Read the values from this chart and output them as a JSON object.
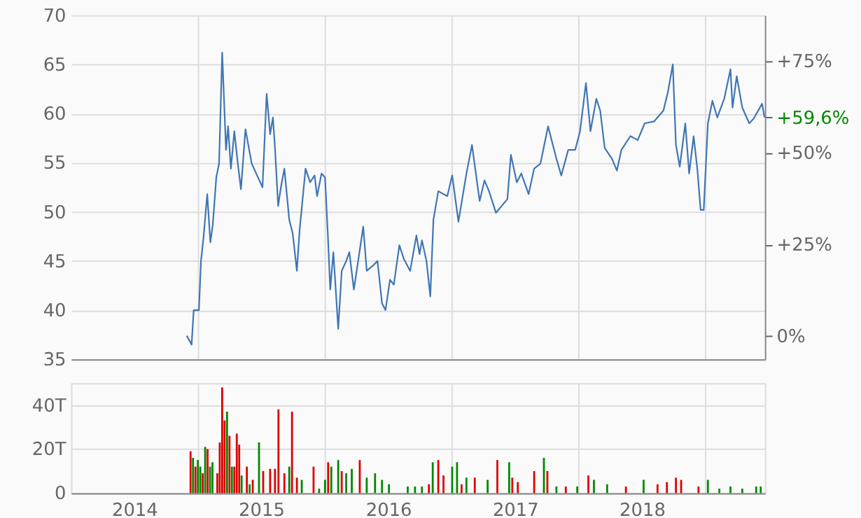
{
  "chart_data": [
    {
      "type": "line",
      "x": [
        "2014-11-30",
        "2014-12-14",
        "2014-12-20",
        "2015-01-04",
        "2015-01-10",
        "2015-01-17",
        "2015-01-28",
        "2015-02-06",
        "2015-02-13",
        "2015-02-23",
        "2015-03-03",
        "2015-03-12",
        "2015-03-23",
        "2015-03-29",
        "2015-04-06",
        "2015-04-16",
        "2015-04-26",
        "2015-05-05",
        "2015-05-18",
        "2015-06-05",
        "2015-06-18",
        "2015-07-06",
        "2015-07-18",
        "2015-07-28",
        "2015-08-05",
        "2015-08-11",
        "2015-08-20",
        "2015-08-28",
        "2015-09-07",
        "2015-09-21",
        "2015-10-01",
        "2015-10-13",
        "2015-10-21",
        "2015-11-07",
        "2015-11-20",
        "2015-12-03",
        "2015-12-10",
        "2015-12-23",
        "2016-01-02",
        "2016-01-10",
        "2016-01-17",
        "2016-01-26",
        "2016-02-09",
        "2016-02-19",
        "2016-03-03",
        "2016-03-12",
        "2016-03-25",
        "2016-04-08",
        "2016-04-21",
        "2016-05-01",
        "2016-05-18",
        "2016-06-01",
        "2016-06-14",
        "2016-06-24",
        "2016-07-07",
        "2016-07-18",
        "2016-08-03",
        "2016-08-16",
        "2016-09-03",
        "2016-09-21",
        "2016-09-30",
        "2016-10-07",
        "2016-10-20",
        "2016-10-31",
        "2016-11-09",
        "2016-11-23",
        "2016-12-19",
        "2017-01-02",
        "2017-01-20",
        "2017-02-12",
        "2017-02-28",
        "2017-03-22",
        "2017-04-05",
        "2017-04-18",
        "2017-05-08",
        "2017-06-10",
        "2017-06-20",
        "2017-07-07",
        "2017-07-20",
        "2017-08-10",
        "2017-08-26",
        "2017-09-13",
        "2017-10-05",
        "2017-10-29",
        "2017-11-12",
        "2017-12-02",
        "2017-12-22",
        "2018-01-05",
        "2018-01-22",
        "2018-02-04",
        "2018-02-21",
        "2018-03-04",
        "2018-03-17",
        "2018-04-07",
        "2018-04-21",
        "2018-05-04",
        "2018-05-30",
        "2018-06-20",
        "2018-07-10",
        "2018-08-06",
        "2018-09-02",
        "2018-09-15",
        "2018-09-29",
        "2018-10-08",
        "2018-10-19",
        "2018-11-04",
        "2018-11-15",
        "2018-11-28",
        "2018-12-09",
        "2018-12-18",
        "2018-12-27",
        "2019-01-08",
        "2019-01-21",
        "2019-02-04",
        "2019-02-24",
        "2019-03-14",
        "2019-03-20",
        "2019-04-01",
        "2019-04-17",
        "2019-05-07",
        "2019-05-20",
        "2019-06-13",
        "2019-06-20"
      ],
      "series": [
        {
          "color": "#3f76b4",
          "values": [
            37.4,
            36.5,
            40.0,
            40.0,
            45.0,
            47.3,
            51.8,
            46.9,
            48.7,
            53.5,
            54.9,
            66.2,
            56.3,
            58.7,
            54.4,
            58.2,
            54.9,
            52.3,
            58.4,
            54.9,
            53.9,
            52.5,
            62.0,
            57.9,
            59.6,
            56.5,
            50.6,
            52.5,
            54.4,
            49.2,
            47.8,
            44.0,
            48.2,
            54.4,
            53.0,
            53.7,
            51.6,
            53.9,
            53.5,
            47.8,
            42.1,
            45.9,
            38.1,
            44.0,
            45.0,
            45.9,
            42.1,
            45.4,
            48.5,
            44.0,
            44.5,
            45.0,
            40.7,
            40.0,
            43.1,
            42.6,
            46.6,
            45.2,
            44.0,
            47.6,
            45.7,
            47.1,
            45.0,
            41.4,
            49.2,
            52.1,
            51.6,
            53.7,
            49.0,
            53.9,
            56.8,
            51.1,
            53.2,
            52.1,
            49.9,
            51.3,
            55.8,
            53.0,
            53.9,
            51.8,
            54.4,
            54.9,
            58.7,
            55.4,
            53.7,
            56.3,
            56.3,
            58.2,
            63.1,
            58.2,
            61.5,
            60.3,
            56.5,
            55.4,
            54.2,
            56.3,
            57.7,
            57.3,
            59.0,
            59.2,
            60.3,
            62.2,
            65.0,
            56.8,
            54.6,
            59.0,
            53.9,
            57.7,
            54.2,
            50.2,
            50.2,
            59.0,
            61.3,
            59.6,
            61.5,
            64.5,
            60.6,
            63.8,
            60.6,
            59.0,
            59.5,
            61.0,
            59.6
          ]
        }
      ],
      "xlim": [
        "2014-01-01",
        "2019-06-21"
      ],
      "xticks": [
        {
          "value": "2015-01-01",
          "label": null
        },
        {
          "value": "2016-01-01",
          "label": null
        },
        {
          "value": "2017-01-01",
          "label": null
        },
        {
          "value": "2018-01-01",
          "label": null
        },
        {
          "value": "2019-01-01",
          "label": null
        }
      ],
      "ylim": [
        35,
        70
      ],
      "yticks": [
        35,
        40,
        45,
        50,
        55,
        60,
        65,
        70
      ],
      "y2lim": [
        -6.29,
        87.42
      ],
      "y2ticks": [
        {
          "value": 0,
          "label": "0%"
        },
        {
          "value": 25,
          "label": "+25%"
        },
        {
          "value": 50,
          "label": "+50%"
        },
        {
          "value": 59.6,
          "label": "+59,6%"
        },
        {
          "value": 75,
          "label": "+75%"
        }
      ],
      "grid": true,
      "tick_labels": "y"
    },
    {
      "type": "bar",
      "series": [
        {
          "color": "#008800",
          "x": [
            "2014-12-18",
            "2015-01-01",
            "2015-01-08",
            "2015-01-22",
            "2015-02-05",
            "2015-02-12",
            "2015-03-26",
            "2015-04-09",
            "2015-05-07",
            "2015-05-30",
            "2015-06-26",
            "2015-09-21",
            "2015-10-27",
            "2015-12-16",
            "2016-01-02",
            "2016-01-20",
            "2016-02-09",
            "2016-03-03",
            "2016-03-19",
            "2016-05-01",
            "2016-05-25",
            "2016-06-14",
            "2016-07-04",
            "2016-08-27",
            "2016-09-17",
            "2016-10-07",
            "2016-11-07",
            "2017-01-02",
            "2017-01-16",
            "2017-02-12",
            "2017-04-14",
            "2017-06-15",
            "2017-09-23",
            "2017-10-29",
            "2017-12-28",
            "2018-02-14",
            "2018-03-24",
            "2018-07-07",
            "2019-01-08",
            "2019-02-10",
            "2019-03-14",
            "2019-04-17",
            "2019-05-27",
            "2019-06-09"
          ],
          "values": [
            16,
            15,
            12,
            21,
            12,
            14,
            37,
            12,
            8,
            4,
            23,
            12,
            6,
            2,
            6,
            12,
            15,
            9,
            11,
            7,
            9,
            6,
            4,
            3,
            3,
            3,
            14,
            12,
            14,
            7,
            6,
            14,
            16,
            3,
            3,
            6,
            4,
            6,
            6,
            2,
            3,
            2,
            3,
            3
          ]
        },
        {
          "color": "#dd0000",
          "x": [
            "2014-12-11",
            "2014-12-25",
            "2015-01-15",
            "2015-01-29",
            "2015-02-26",
            "2015-03-05",
            "2015-03-12",
            "2015-03-19",
            "2015-04-02",
            "2015-04-16",
            "2015-04-23",
            "2015-04-30",
            "2015-05-22",
            "2015-06-08",
            "2015-07-08",
            "2015-07-28",
            "2015-08-11",
            "2015-08-21",
            "2015-09-07",
            "2015-09-29",
            "2015-10-13",
            "2015-11-30",
            "2016-01-11",
            "2016-02-19",
            "2016-04-11",
            "2016-10-27",
            "2016-11-23",
            "2016-12-08",
            "2017-01-29",
            "2017-03-08",
            "2017-05-12",
            "2017-06-24",
            "2017-07-10",
            "2017-08-26",
            "2017-10-03",
            "2017-11-25",
            "2018-01-29",
            "2018-05-17",
            "2018-08-16",
            "2018-09-12",
            "2018-10-08",
            "2018-10-23",
            "2018-12-12"
          ],
          "values": [
            19,
            12,
            9,
            20,
            9,
            23,
            48,
            33,
            26,
            12,
            27,
            22,
            12,
            6,
            10,
            11,
            11,
            38,
            9,
            37,
            7,
            12,
            14,
            10,
            15,
            4,
            15,
            8,
            4,
            7,
            15,
            7,
            5,
            10,
            10,
            3,
            8,
            3,
            4,
            5,
            7,
            6,
            3
          ]
        }
      ],
      "xlim": [
        "2014-01-01",
        "2019-06-21"
      ],
      "xticks": [
        {
          "value": "2014-07-02",
          "label": "2014"
        },
        {
          "value": "2015-01-01",
          "label": null
        },
        {
          "value": "2015-07-02",
          "label": "2015"
        },
        {
          "value": "2016-01-01",
          "label": null
        },
        {
          "value": "2016-07-02",
          "label": "2016"
        },
        {
          "value": "2017-01-01",
          "label": null
        },
        {
          "value": "2017-07-02",
          "label": "2017"
        },
        {
          "value": "2018-01-01",
          "label": null
        },
        {
          "value": "2018-07-02",
          "label": "2018"
        },
        {
          "value": "2019-01-01",
          "label": null
        }
      ],
      "ylim": [
        0,
        50
      ],
      "yticks": [
        0,
        {
          "value": 20,
          "label": "20T"
        },
        {
          "value": 40,
          "label": "40T"
        }
      ],
      "grid": true
    }
  ]
}
